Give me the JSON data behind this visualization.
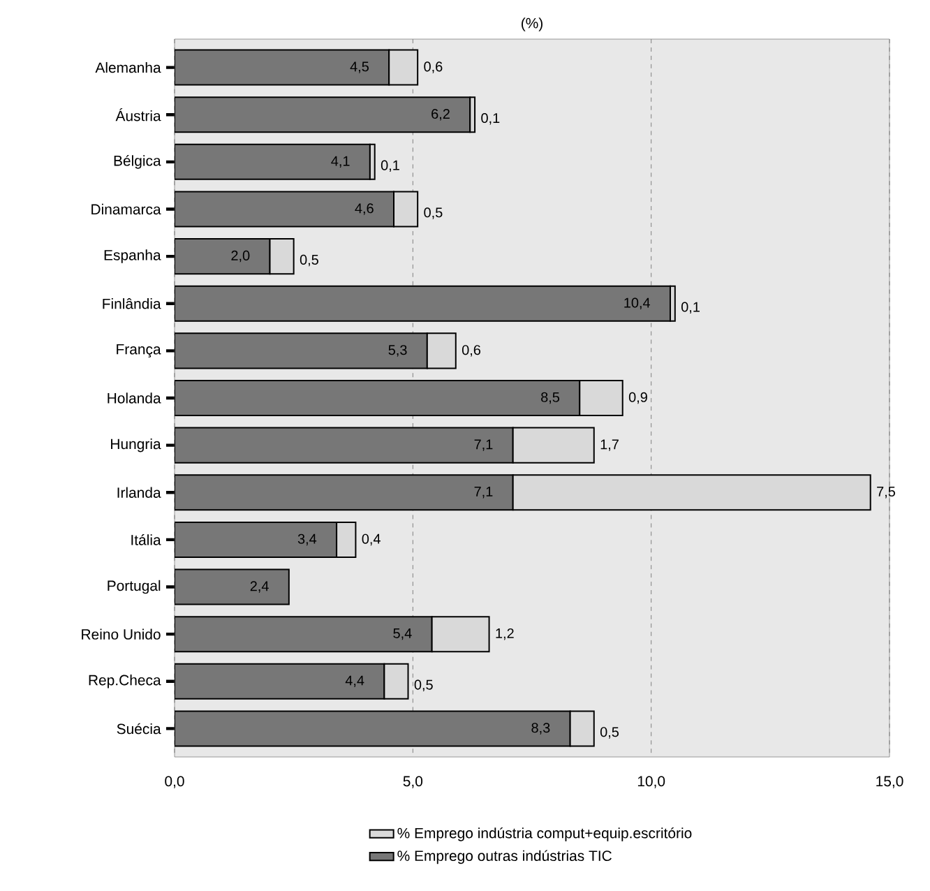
{
  "chart_data": {
    "type": "bar",
    "orientation": "horizontal",
    "stacked": true,
    "title": "(%)",
    "categories": [
      "Alemanha",
      "Áustria",
      "Bélgica",
      "Dinamarca",
      "Espanha",
      "Finlândia",
      "França",
      "Holanda",
      "Hungria",
      "Irlanda",
      "Itália",
      "Portugal",
      "Reino Unido",
      "Rep.Checa",
      "Suécia"
    ],
    "series": [
      {
        "name": "% Emprego outras indústrias TIC",
        "color": "#777777",
        "values": [
          4.5,
          6.2,
          4.1,
          4.6,
          2.0,
          10.4,
          5.3,
          8.5,
          7.1,
          7.1,
          3.4,
          2.4,
          5.4,
          4.4,
          8.3
        ],
        "value_labels": [
          "4,5",
          "6,2",
          "4,1",
          "4,6",
          "2,0",
          "10,4",
          "5,3",
          "8,5",
          "7,1",
          "7,1",
          "3,4",
          "2,4",
          "5,4",
          "4,4",
          "8,3"
        ]
      },
      {
        "name": "% Emprego indústria comput+equip.escritório",
        "color": "#d9d9d9",
        "values": [
          0.6,
          0.1,
          0.1,
          0.5,
          0.5,
          0.1,
          0.6,
          0.9,
          1.7,
          7.5,
          0.4,
          null,
          1.2,
          0.5,
          0.5
        ],
        "value_labels": [
          "0,6",
          "0,1",
          "0,1",
          "0,5",
          "0,5",
          "0,1",
          "0,6",
          "0,9",
          "1,7",
          "7,5",
          "0,4",
          null,
          "1,2",
          "0,5",
          "0,5"
        ]
      }
    ],
    "xlim": [
      0,
      15
    ],
    "xticks": [
      {
        "value": 0,
        "label": "0,0"
      },
      {
        "value": 5,
        "label": "5,0"
      },
      {
        "value": 10,
        "label": "10,0"
      },
      {
        "value": 15,
        "label": "15,0"
      }
    ],
    "grid": "x",
    "legend": "bottom"
  }
}
